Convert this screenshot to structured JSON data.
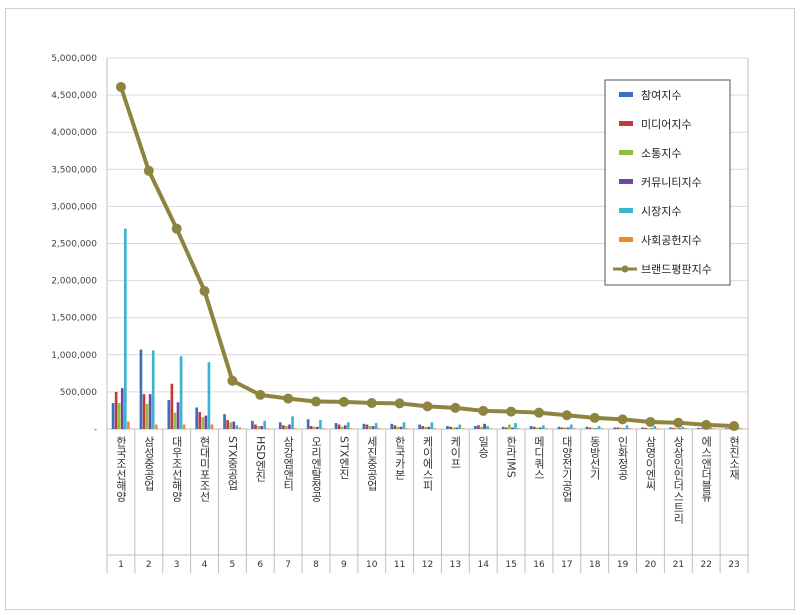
{
  "chart_data": {
    "type": "bar",
    "title": "",
    "ylim": [
      0,
      5000000
    ],
    "yticks": [
      "-",
      "500,000",
      "1,000,000",
      "1,500,000",
      "2,000,000",
      "2,500,000",
      "3,000,000",
      "3,500,000",
      "4,000,000",
      "4,500,000",
      "5,000,000"
    ],
    "ytick_values": [
      0,
      500000,
      1000000,
      1500000,
      2000000,
      2500000,
      3000000,
      3500000,
      4000000,
      4500000,
      5000000
    ],
    "categories": [
      "한국조선해양",
      "삼성중공업",
      "대우조선해양",
      "현대미포조선",
      "STX중공업",
      "HSD엔진",
      "삼강엠앤티",
      "오리엔탈정공",
      "STX엔진",
      "세진중공업",
      "한국카본",
      "케이에스피",
      "케이프",
      "일승",
      "한라IMS",
      "메디쿼스",
      "대양전기공업",
      "동방선기",
      "인화정공",
      "삼영이엔씨",
      "상상인인더스트리",
      "에스앤더블류",
      "현진소재"
    ],
    "category_numbers": [
      "1",
      "2",
      "3",
      "4",
      "5",
      "6",
      "7",
      "8",
      "9",
      "10",
      "11",
      "12",
      "13",
      "14",
      "15",
      "16",
      "17",
      "18",
      "19",
      "20",
      "21",
      "22",
      "23"
    ],
    "series": [
      {
        "name": "참여지수",
        "color": "#3a6fbd",
        "kind": "bar",
        "values": [
          350000,
          1070000,
          390000,
          290000,
          200000,
          110000,
          90000,
          130000,
          80000,
          70000,
          70000,
          60000,
          40000,
          40000,
          30000,
          40000,
          30000,
          30000,
          20000,
          20000,
          20000,
          15000,
          10000
        ]
      },
      {
        "name": "미디어지수",
        "color": "#c0393b",
        "kind": "bar",
        "values": [
          500000,
          470000,
          610000,
          230000,
          120000,
          60000,
          50000,
          40000,
          60000,
          60000,
          50000,
          40000,
          30000,
          50000,
          20000,
          30000,
          20000,
          20000,
          20000,
          15000,
          15000,
          10000,
          10000
        ]
      },
      {
        "name": "소통지수",
        "color": "#8fbd3c",
        "kind": "bar",
        "values": [
          350000,
          340000,
          220000,
          160000,
          90000,
          40000,
          40000,
          30000,
          30000,
          40000,
          30000,
          30000,
          20000,
          30000,
          60000,
          20000,
          20000,
          15000,
          20000,
          10000,
          10000,
          10000,
          10000
        ]
      },
      {
        "name": "커뮤니티지수",
        "color": "#7045a0",
        "kind": "bar",
        "values": [
          550000,
          470000,
          360000,
          180000,
          100000,
          40000,
          60000,
          30000,
          50000,
          40000,
          30000,
          30000,
          20000,
          70000,
          20000,
          20000,
          20000,
          10000,
          10000,
          10000,
          10000,
          10000,
          5000
        ]
      },
      {
        "name": "시장지수",
        "color": "#3cb4cf",
        "kind": "bar",
        "values": [
          2700000,
          1060000,
          980000,
          900000,
          50000,
          110000,
          170000,
          120000,
          90000,
          80000,
          90000,
          90000,
          60000,
          40000,
          80000,
          50000,
          60000,
          40000,
          50000,
          40000,
          30000,
          20000,
          20000
        ]
      },
      {
        "name": "사회공헌지수",
        "color": "#ee8a2a",
        "kind": "bar",
        "values": [
          100000,
          60000,
          60000,
          60000,
          20000,
          10000,
          10000,
          10000,
          10000,
          10000,
          10000,
          10000,
          10000,
          10000,
          10000,
          10000,
          10000,
          10000,
          10000,
          10000,
          10000,
          10000,
          10000
        ]
      },
      {
        "name": "브랜드평판지수",
        "color": "#8d8440",
        "kind": "line",
        "values": [
          4610000,
          3480000,
          2700000,
          1860000,
          650000,
          460000,
          410000,
          370000,
          365000,
          350000,
          345000,
          305000,
          285000,
          245000,
          235000,
          220000,
          185000,
          150000,
          130000,
          95000,
          85000,
          55000,
          40000
        ]
      }
    ],
    "legend_position": "top-right",
    "grid": true
  }
}
